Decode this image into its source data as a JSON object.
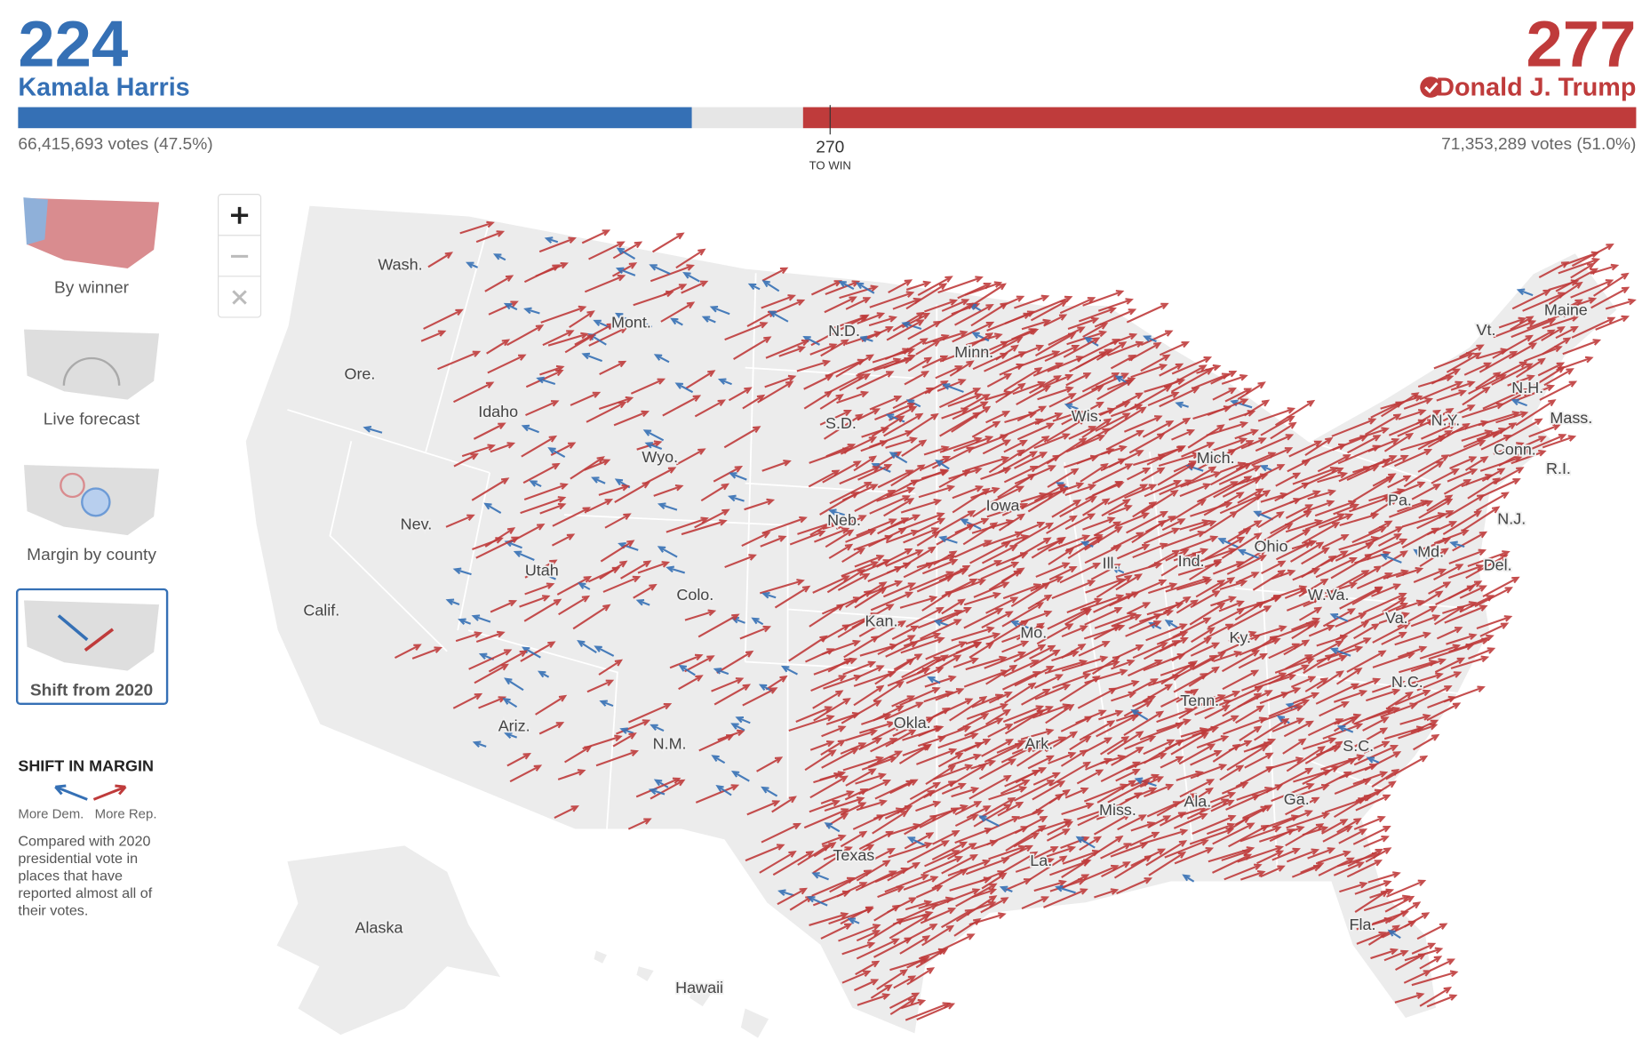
{
  "header": {
    "dem": {
      "electoral_votes": 224,
      "name": "Kamala Harris",
      "votes": "66,415,693 votes (47.5%)"
    },
    "rep": {
      "electoral_votes": 277,
      "name": "Donald J. Trump",
      "votes": "71,353,289 votes (51.0%)"
    },
    "threshold": {
      "value": 270,
      "label": "TO WIN"
    }
  },
  "colors": {
    "dem": "#3570b5",
    "rep": "#bf3b3b"
  },
  "views": [
    "By winner",
    "Live forecast",
    "Margin by county",
    "Shift from 2020"
  ],
  "selected_view": 3,
  "legend": {
    "title": "SHIFT IN MARGIN",
    "dem": "More Dem.",
    "rep": "More Rep.",
    "note": [
      "Compared with 2020",
      "presidential vote in",
      "places that have",
      "reported almost all of",
      "their votes."
    ]
  },
  "map": {
    "labels": [
      "Wash.",
      "Ore.",
      "Calif.",
      "Nev.",
      "Idaho",
      "Mont.",
      "Wyo.",
      "Utah",
      "Colo.",
      "Ariz.",
      "N.M.",
      "N.D.",
      "S.D.",
      "Neb.",
      "Kan.",
      "Okla.",
      "Texas",
      "Minn.",
      "Iowa",
      "Mo.",
      "Ark.",
      "La.",
      "Wis.",
      "Ill.",
      "Miss.",
      "Mich.",
      "Ind.",
      "Ky.",
      "Tenn.",
      "Ala.",
      "Ohio",
      "Ga.",
      "W.Va.",
      "Va.",
      "N.C.",
      "S.C.",
      "Fla.",
      "Pa.",
      "N.Y.",
      "Vt.",
      "N.H.",
      "Maine",
      "Mass.",
      "Conn.",
      "R.I.",
      "N.J.",
      "Md.",
      "Del.",
      "Alaska",
      "Hawaii"
    ]
  }
}
